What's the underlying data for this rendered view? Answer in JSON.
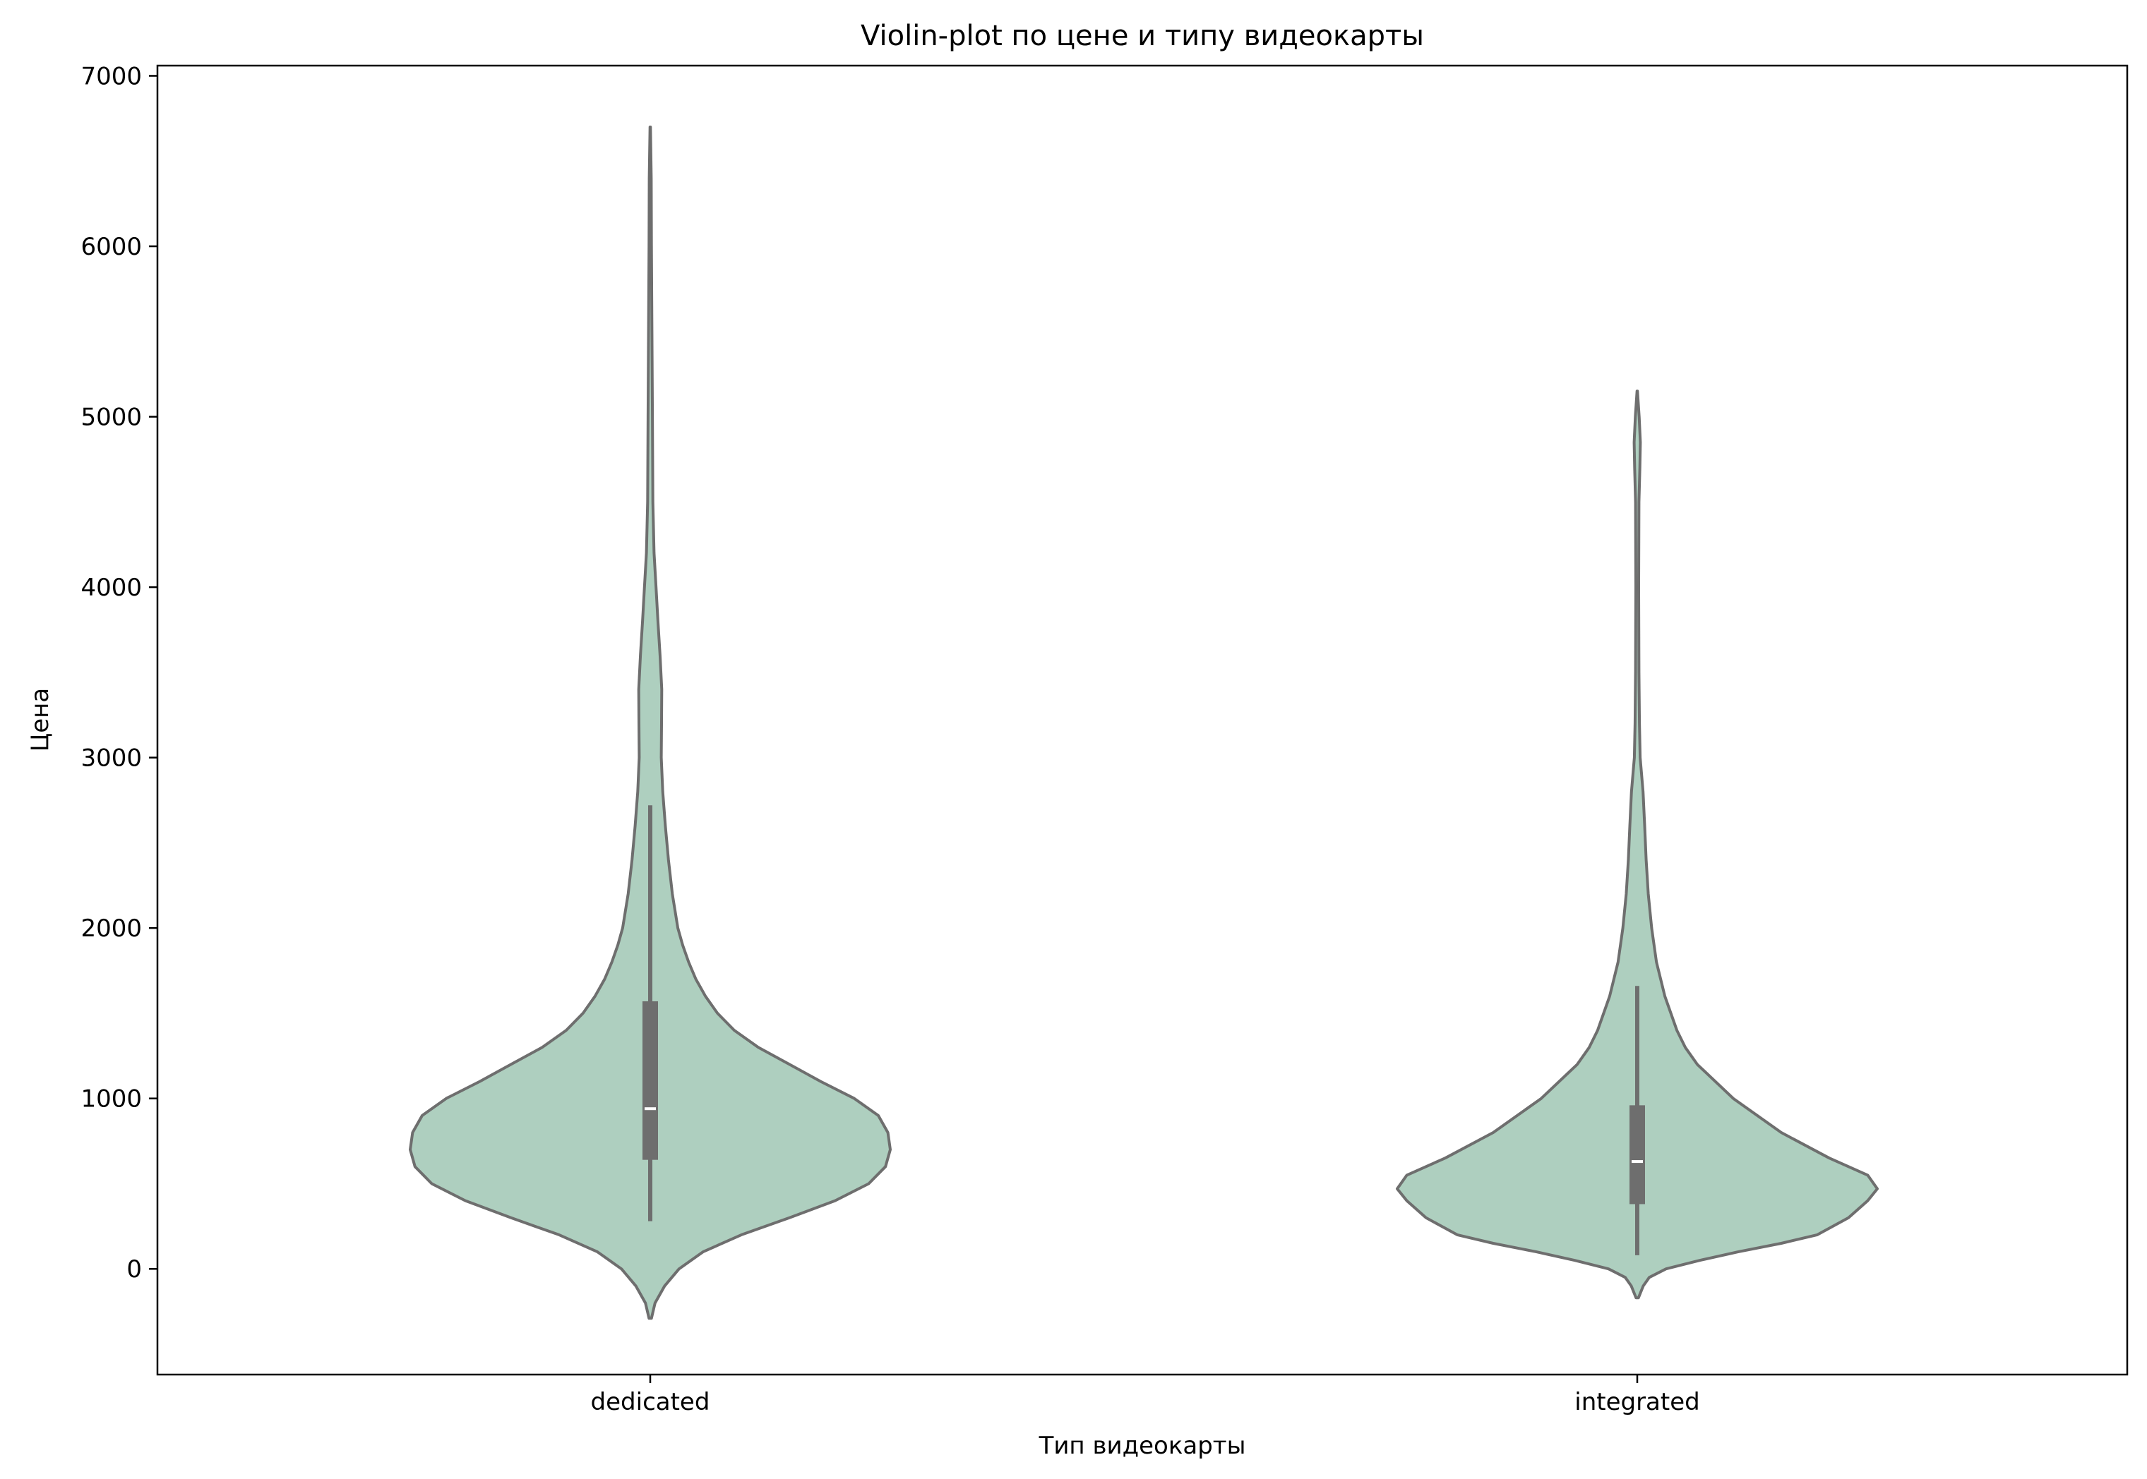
{
  "chart_data": {
    "type": "violin",
    "title": "Violin-plot по цене и типу видеокарты",
    "xlabel": "Тип видеокарты",
    "ylabel": "Цена",
    "categories": [
      "dedicated",
      "integrated"
    ],
    "ylim": [
      -620,
      7060
    ],
    "yticks": [
      0,
      1000,
      2000,
      3000,
      4000,
      5000,
      6000,
      7000
    ],
    "grid": false,
    "legend": "none",
    "colors": {
      "fill": "#aecfbf",
      "edge": "#6e6e6e",
      "box": "#6e6e6e",
      "median": "#ffffff"
    },
    "violins": [
      {
        "category": "dedicated",
        "density": [
          [
            -290,
            0.005
          ],
          [
            -200,
            0.02
          ],
          [
            -100,
            0.06
          ],
          [
            0,
            0.12
          ],
          [
            100,
            0.22
          ],
          [
            200,
            0.38
          ],
          [
            300,
            0.58
          ],
          [
            400,
            0.77
          ],
          [
            500,
            0.91
          ],
          [
            600,
            0.98
          ],
          [
            700,
            1.0
          ],
          [
            800,
            0.99
          ],
          [
            900,
            0.95
          ],
          [
            1000,
            0.85
          ],
          [
            1100,
            0.71
          ],
          [
            1200,
            0.58
          ],
          [
            1300,
            0.45
          ],
          [
            1400,
            0.35
          ],
          [
            1500,
            0.28
          ],
          [
            1600,
            0.23
          ],
          [
            1700,
            0.19
          ],
          [
            1800,
            0.16
          ],
          [
            1900,
            0.135
          ],
          [
            2000,
            0.115
          ],
          [
            2200,
            0.092
          ],
          [
            2400,
            0.076
          ],
          [
            2600,
            0.063
          ],
          [
            2800,
            0.052
          ],
          [
            3000,
            0.046
          ],
          [
            3200,
            0.047
          ],
          [
            3400,
            0.048
          ],
          [
            3600,
            0.041
          ],
          [
            3800,
            0.032
          ],
          [
            4000,
            0.024
          ],
          [
            4200,
            0.016
          ],
          [
            4500,
            0.011
          ],
          [
            5000,
            0.009
          ],
          [
            5500,
            0.007
          ],
          [
            6000,
            0.005
          ],
          [
            6400,
            0.004
          ],
          [
            6700,
            0.001
          ]
        ],
        "q1": 640,
        "median": 940,
        "q3": 1570,
        "whisker_low": 280,
        "whisker_high": 2720
      },
      {
        "category": "integrated",
        "density": [
          [
            -170,
            0.005
          ],
          [
            -100,
            0.025
          ],
          [
            -50,
            0.05
          ],
          [
            0,
            0.12
          ],
          [
            50,
            0.26
          ],
          [
            100,
            0.42
          ],
          [
            150,
            0.6
          ],
          [
            200,
            0.75
          ],
          [
            300,
            0.88
          ],
          [
            400,
            0.96
          ],
          [
            470,
            1.0
          ],
          [
            550,
            0.96
          ],
          [
            650,
            0.8
          ],
          [
            800,
            0.6
          ],
          [
            1000,
            0.4
          ],
          [
            1200,
            0.25
          ],
          [
            1300,
            0.2
          ],
          [
            1400,
            0.165
          ],
          [
            1500,
            0.14
          ],
          [
            1600,
            0.115
          ],
          [
            1800,
            0.08
          ],
          [
            2000,
            0.06
          ],
          [
            2200,
            0.046
          ],
          [
            2400,
            0.037
          ],
          [
            2600,
            0.031
          ],
          [
            2800,
            0.024
          ],
          [
            3000,
            0.012
          ],
          [
            3200,
            0.009
          ],
          [
            3500,
            0.007
          ],
          [
            4000,
            0.006
          ],
          [
            4500,
            0.007
          ],
          [
            4700,
            0.011
          ],
          [
            4850,
            0.013
          ],
          [
            5000,
            0.008
          ],
          [
            5150,
            0.001
          ]
        ],
        "q1": 380,
        "median": 630,
        "q3": 960,
        "whisker_low": 80,
        "whisker_high": 1660
      }
    ]
  }
}
